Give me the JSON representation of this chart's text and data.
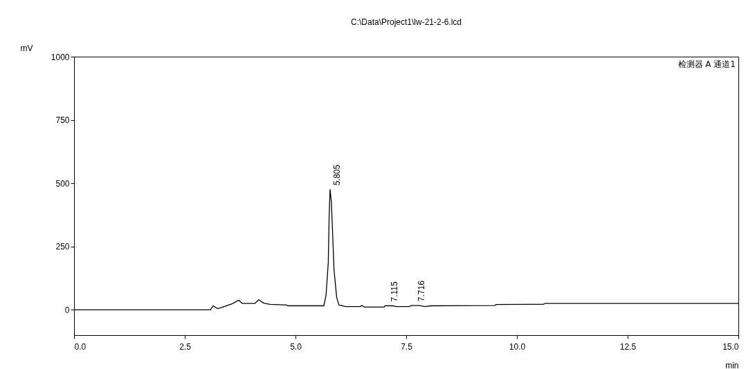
{
  "chart_data": {
    "type": "line",
    "title": "C:\\Data\\Project1\\lw-21-2-6.lcd",
    "xlabel": "min",
    "ylabel": "mV",
    "x": [
      0,
      3.08,
      3.14,
      3.24,
      3.31,
      3.57,
      3.72,
      3.8,
      4.08,
      4.17,
      4.29,
      4.42,
      4.8,
      4.82,
      5.64,
      5.69,
      5.74,
      5.76,
      5.78,
      5.81,
      5.84,
      5.87,
      5.93,
      5.98,
      6.13,
      6.46,
      6.5,
      6.55,
      7.0,
      7.02,
      7.18,
      7.28,
      7.58,
      7.61,
      7.79,
      7.92,
      8.07,
      9.5,
      9.53,
      10.6,
      10.63,
      15
    ],
    "series": [
      {
        "color": "#000000",
        "values": [
          0,
          0,
          16,
          5,
          8,
          24,
          38,
          25,
          25,
          40,
          26,
          22,
          19,
          16,
          16,
          58,
          186,
          368,
          475,
          427,
          295,
          158,
          49,
          19,
          13,
          13,
          17,
          11,
          11,
          16,
          16,
          13,
          13,
          17,
          17,
          13,
          16,
          17,
          21,
          22,
          25,
          25
        ]
      }
    ],
    "xlim": [
      0,
      15
    ],
    "xticks": [
      {
        "value": 0,
        "label": "0.0"
      },
      {
        "value": 2.5,
        "label": "2.5"
      },
      {
        "value": 5,
        "label": "5.0"
      },
      {
        "value": 7.5,
        "label": "7.5"
      },
      {
        "value": 10,
        "label": "10.0"
      },
      {
        "value": 12.5,
        "label": "12.5"
      },
      {
        "value": 15,
        "label": "15.0"
      }
    ],
    "ylim": [
      -100,
      1000
    ],
    "yticks": [
      0,
      250,
      500,
      750,
      1000
    ],
    "grid": false,
    "marker": "none",
    "line_style": "solid",
    "annotations": [
      {
        "text": "5.805",
        "x": 5.805,
        "y": 475
      },
      {
        "text": "7.115",
        "x": 7.115,
        "y": 16
      },
      {
        "text": "7.716",
        "x": 7.716,
        "y": 17
      },
      "检测器 A 通道1"
    ]
  }
}
